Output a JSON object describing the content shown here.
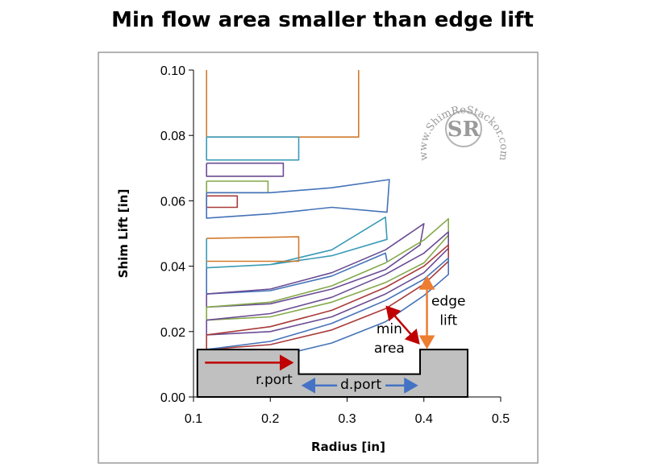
{
  "chart_data": {
    "type": "line",
    "title": "Min flow area smaller than edge lift",
    "xlabel": "Radius [in]",
    "ylabel": "Shim Lift [in]",
    "xlim": [
      0.1,
      0.5
    ],
    "ylim": [
      0.0,
      0.1
    ],
    "xticks": [
      "0.1",
      "0.2",
      "0.3",
      "0.4",
      "0.5"
    ],
    "yticks": [
      "0.00",
      "0.02",
      "0.04",
      "0.06",
      "0.08",
      "0.10"
    ],
    "grid": false,
    "legend": "none",
    "watermark": {
      "text": "www.ShimReStackor.com",
      "logo": "SR"
    },
    "shapes": [
      {
        "color": "#d17a2e",
        "points": [
          [
            0.117,
            0.1
          ],
          [
            0.117,
            0.0795
          ],
          [
            0.315,
            0.0795
          ],
          [
            0.315,
            0.1
          ]
        ]
      },
      {
        "color": "#3a9bb8",
        "points": [
          [
            0.117,
            0.0795
          ],
          [
            0.117,
            0.0725
          ],
          [
            0.237,
            0.0725
          ],
          [
            0.237,
            0.0795
          ],
          [
            0.117,
            0.0795
          ]
        ]
      },
      {
        "color": "#6a4c93",
        "points": [
          [
            0.117,
            0.0715
          ],
          [
            0.117,
            0.0675
          ],
          [
            0.217,
            0.0675
          ],
          [
            0.217,
            0.0715
          ],
          [
            0.117,
            0.0715
          ]
        ]
      },
      {
        "color": "#84a94b",
        "points": [
          [
            0.117,
            0.066
          ],
          [
            0.117,
            0.0625
          ],
          [
            0.197,
            0.0625
          ],
          [
            0.197,
            0.066
          ],
          [
            0.117,
            0.066
          ]
        ]
      },
      {
        "color": "#a93a3a",
        "points": [
          [
            0.117,
            0.0615
          ],
          [
            0.117,
            0.058
          ],
          [
            0.157,
            0.058
          ],
          [
            0.157,
            0.0615
          ],
          [
            0.117,
            0.0615
          ]
        ]
      },
      {
        "color": "#4472b8",
        "points": [
          [
            0.117,
            0.0625
          ],
          [
            0.117,
            0.0547
          ],
          [
            0.2,
            0.056
          ],
          [
            0.28,
            0.058
          ],
          [
            0.352,
            0.0565
          ],
          [
            0.355,
            0.0665
          ],
          [
            0.28,
            0.064
          ],
          [
            0.2,
            0.0625
          ],
          [
            0.117,
            0.0625
          ]
        ]
      },
      {
        "color": "#3a9bb8",
        "points": [
          [
            0.117,
            0.0485
          ],
          [
            0.117,
            0.0395
          ],
          [
            0.2,
            0.0405
          ],
          [
            0.28,
            0.045
          ],
          [
            0.35,
            0.055
          ],
          [
            0.352,
            0.0482
          ],
          [
            0.28,
            0.0432
          ],
          [
            0.2,
            0.0405
          ]
        ]
      },
      {
        "color": "#d17a2e",
        "points": [
          [
            0.117,
            0.0485
          ],
          [
            0.237,
            0.049
          ],
          [
            0.237,
            0.0415
          ],
          [
            0.117,
            0.0415
          ]
        ]
      },
      {
        "color": "#4472b8",
        "points": [
          [
            0.117,
            0.0395
          ],
          [
            0.117,
            0.0315
          ],
          [
            0.2,
            0.0325
          ],
          [
            0.28,
            0.037
          ],
          [
            0.35,
            0.044
          ],
          [
            0.352,
            0.0415
          ]
        ]
      },
      {
        "color": "#6a4c93",
        "points": [
          [
            0.117,
            0.0315
          ],
          [
            0.117,
            0.0275
          ],
          [
            0.2,
            0.0285
          ],
          [
            0.28,
            0.033
          ],
          [
            0.35,
            0.039
          ],
          [
            0.395,
            0.0465
          ],
          [
            0.4,
            0.053
          ],
          [
            0.35,
            0.045
          ],
          [
            0.28,
            0.038
          ],
          [
            0.2,
            0.033
          ],
          [
            0.117,
            0.0315
          ]
        ]
      },
      {
        "color": "#84a94b",
        "points": [
          [
            0.117,
            0.0275
          ],
          [
            0.117,
            0.0235
          ],
          [
            0.2,
            0.0245
          ],
          [
            0.28,
            0.029
          ],
          [
            0.35,
            0.035
          ],
          [
            0.4,
            0.041
          ],
          [
            0.432,
            0.0495
          ],
          [
            0.432,
            0.0545
          ],
          [
            0.4,
            0.048
          ],
          [
            0.35,
            0.041
          ],
          [
            0.28,
            0.034
          ],
          [
            0.2,
            0.029
          ],
          [
            0.117,
            0.0275
          ]
        ]
      },
      {
        "color": "#6a4c93",
        "points": [
          [
            0.117,
            0.0235
          ],
          [
            0.117,
            0.019
          ],
          [
            0.2,
            0.02
          ],
          [
            0.28,
            0.0245
          ],
          [
            0.35,
            0.0315
          ],
          [
            0.4,
            0.038
          ],
          [
            0.432,
            0.0455
          ],
          [
            0.432,
            0.0505
          ],
          [
            0.4,
            0.044
          ],
          [
            0.35,
            0.0375
          ],
          [
            0.28,
            0.0305
          ],
          [
            0.2,
            0.0255
          ],
          [
            0.117,
            0.0235
          ]
        ]
      },
      {
        "color": "#a93a3a",
        "points": [
          [
            0.117,
            0.019
          ],
          [
            0.117,
            0.0145
          ],
          [
            0.2,
            0.016
          ],
          [
            0.28,
            0.0205
          ],
          [
            0.35,
            0.027
          ],
          [
            0.4,
            0.0345
          ],
          [
            0.432,
            0.0415
          ],
          [
            0.432,
            0.0465
          ],
          [
            0.4,
            0.04
          ],
          [
            0.35,
            0.0335
          ],
          [
            0.28,
            0.0265
          ],
          [
            0.2,
            0.0215
          ],
          [
            0.117,
            0.019
          ]
        ]
      },
      {
        "color": "#4472b8",
        "points": [
          [
            0.117,
            0.0145
          ],
          [
            0.117,
            0.011
          ],
          [
            0.2,
            0.012
          ],
          [
            0.28,
            0.0165
          ],
          [
            0.35,
            0.023
          ],
          [
            0.4,
            0.031
          ],
          [
            0.432,
            0.0375
          ],
          [
            0.432,
            0.0425
          ],
          [
            0.4,
            0.036
          ],
          [
            0.35,
            0.0295
          ],
          [
            0.28,
            0.0225
          ],
          [
            0.2,
            0.017
          ],
          [
            0.117,
            0.0145
          ]
        ]
      }
    ],
    "port": {
      "fill": "#c0c0c0",
      "points": [
        [
          0.105,
          0.0145
        ],
        [
          0.237,
          0.0145
        ],
        [
          0.237,
          0.007
        ],
        [
          0.395,
          0.007
        ],
        [
          0.395,
          0.0145
        ],
        [
          0.457,
          0.0145
        ],
        [
          0.457,
          0.0
        ],
        [
          0.105,
          0.0
        ]
      ]
    },
    "annotations": [
      {
        "id": "rport",
        "text": "r.port",
        "x": 0.205,
        "y": 0.004
      },
      {
        "id": "dport",
        "text": "d.port",
        "x": 0.318,
        "y": 0.0025
      },
      {
        "id": "min",
        "text": "min",
        "x": 0.355,
        "y": 0.0195
      },
      {
        "id": "area",
        "text": "area",
        "x": 0.355,
        "y": 0.0135
      },
      {
        "id": "edge",
        "text": "edge",
        "x": 0.432,
        "y": 0.028
      },
      {
        "id": "lift",
        "text": "lift",
        "x": 0.432,
        "y": 0.022
      }
    ],
    "arrows": [
      {
        "name": "rport-arrow",
        "color": "#c00000",
        "from": [
          0.115,
          0.0105
        ],
        "to": [
          0.228,
          0.0105
        ],
        "double": false
      },
      {
        "name": "dport-arrow-left",
        "color": "#4472c4",
        "from": [
          0.287,
          0.0035
        ],
        "to": [
          0.243,
          0.0035
        ],
        "double": false
      },
      {
        "name": "dport-arrow-right",
        "color": "#4472c4",
        "from": [
          0.35,
          0.0035
        ],
        "to": [
          0.39,
          0.0035
        ],
        "double": false
      },
      {
        "name": "min-area-arrow",
        "color": "#c00000",
        "from": [
          0.352,
          0.0275
        ],
        "to": [
          0.393,
          0.0165
        ],
        "double": true
      },
      {
        "name": "edge-lift-arrow",
        "color": "#ed7d31",
        "from": [
          0.404,
          0.0152
        ],
        "to": [
          0.404,
          0.0365
        ],
        "double": true
      }
    ]
  }
}
